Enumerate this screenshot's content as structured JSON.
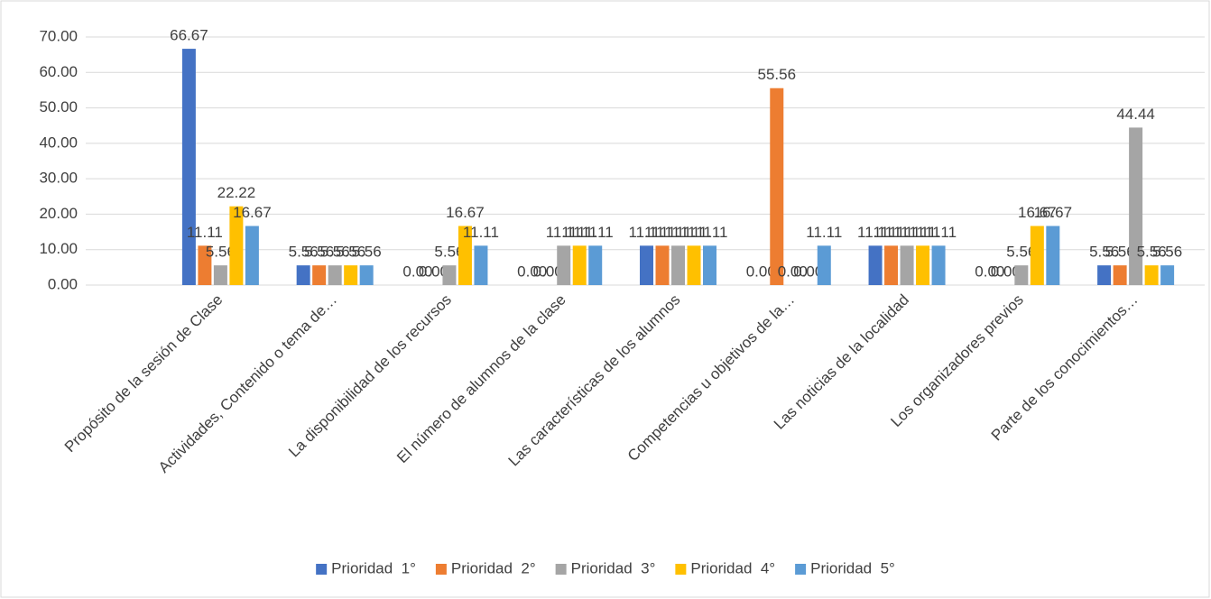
{
  "chart_data": {
    "type": "bar",
    "categories": [
      "Propósito de la sesión de Clase",
      "Actividades, Contenido o tema de…",
      "La disponibilidad de los recursos",
      "El número de alumnos de la clase",
      "Las características de los alumnos",
      "Competencias u objetivos de la…",
      "Las noticias de la localidad",
      "Los organizadores previos",
      "Parte de los conocimientos…"
    ],
    "series": [
      {
        "name": "Prioridad  1°",
        "color": "#4472c4",
        "values": [
          66.67,
          5.56,
          0,
          0,
          11.11,
          0,
          11.11,
          0,
          5.56
        ],
        "value_labels": [
          "66.67",
          "5.56",
          "0.00",
          "0.00",
          "11.11",
          "0.00",
          "11.11",
          "0.00",
          "5.56"
        ]
      },
      {
        "name": "Prioridad  2°",
        "color": "#ed7d31",
        "values": [
          11.11,
          5.56,
          0,
          0,
          11.11,
          55.56,
          11.11,
          0,
          5.56
        ],
        "value_labels": [
          "11.11",
          "5.56",
          "0.00",
          "0.00",
          "11.11",
          "55.56",
          "11.11",
          "0.00",
          "5.56"
        ]
      },
      {
        "name": "Prioridad  3°",
        "color": "#a5a5a5",
        "values": [
          5.56,
          5.56,
          5.56,
          11.11,
          11.11,
          0,
          11.11,
          5.56,
          44.44
        ],
        "value_labels": [
          "5.56",
          "5.56",
          "5.56",
          "11.11",
          "11.11",
          "0.00",
          "11.11",
          "5.56",
          "44.44"
        ]
      },
      {
        "name": "Prioridad  4°",
        "color": "#ffc000",
        "values": [
          22.22,
          5.56,
          16.67,
          11.11,
          11.11,
          0,
          11.11,
          16.67,
          5.56
        ],
        "value_labels": [
          "22.22",
          "5.56",
          "16.67",
          "11.11",
          "11.11",
          "0.00",
          "11.11",
          "16.67",
          "5.56"
        ]
      },
      {
        "name": "Prioridad  5°",
        "color": "#5b9bd5",
        "values": [
          16.67,
          5.56,
          11.11,
          11.11,
          11.11,
          11.11,
          11.11,
          16.67,
          5.56
        ],
        "value_labels": [
          "16.67",
          "5.56",
          "11.11",
          "11.11",
          "11.11",
          "11.11",
          "11.11",
          "16.67",
          "5.56"
        ]
      }
    ],
    "ylim": [
      0,
      70
    ],
    "yticks": [
      {
        "value": 0,
        "label": "0.00"
      },
      {
        "value": 10,
        "label": "10.00"
      },
      {
        "value": 20,
        "label": "20.00"
      },
      {
        "value": 30,
        "label": "30.00"
      },
      {
        "value": 40,
        "label": "40.00"
      },
      {
        "value": 50,
        "label": "50.00"
      },
      {
        "value": 60,
        "label": "60.00"
      },
      {
        "value": 70,
        "label": "70.00"
      }
    ],
    "grid": true,
    "legend": "bottom"
  }
}
